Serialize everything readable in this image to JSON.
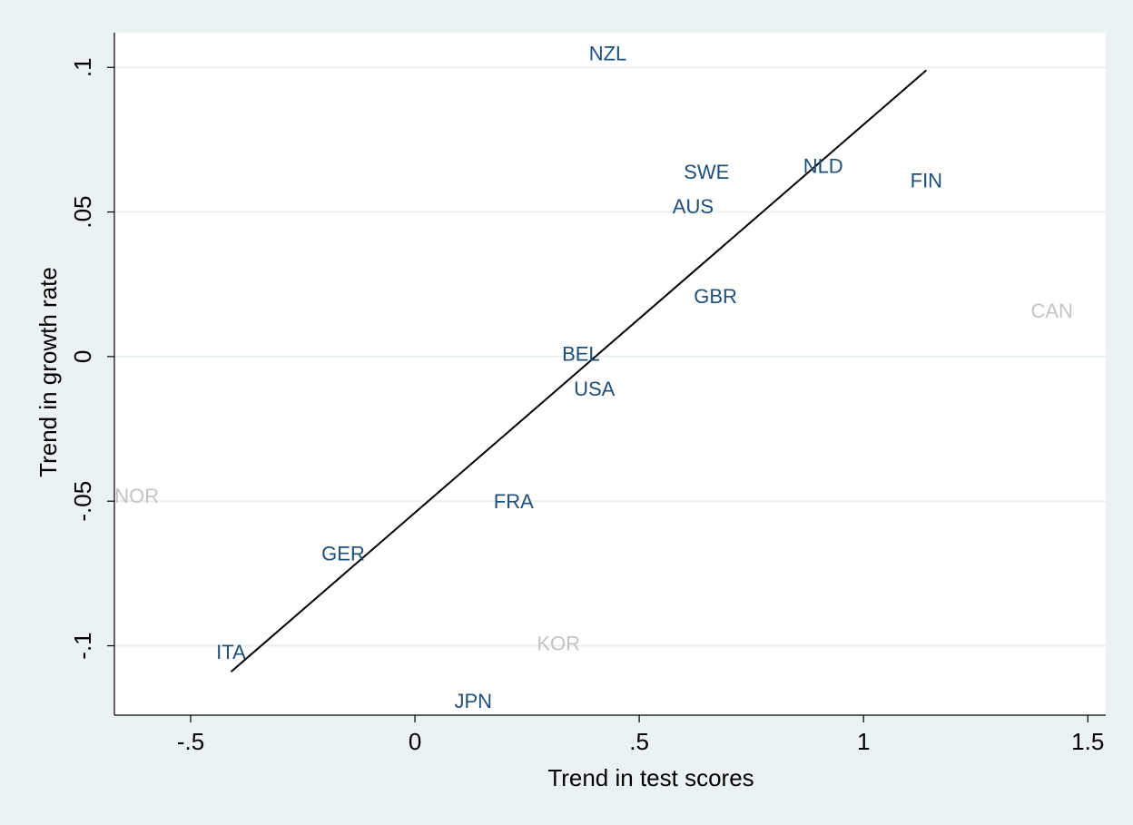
{
  "chart_data": {
    "type": "scatter",
    "xlabel": "Trend in test scores",
    "ylabel": "Trend in growth rate",
    "xlim": [
      -0.67,
      1.54
    ],
    "ylim": [
      -0.124,
      0.112
    ],
    "xticks": [
      -0.5,
      0,
      0.5,
      1,
      1.5
    ],
    "xtick_labels": [
      "-.5",
      "0",
      ".5",
      "1",
      "1.5"
    ],
    "yticks": [
      -0.1,
      -0.05,
      0,
      0.05,
      0.1
    ],
    "ytick_labels": [
      "-.1",
      "-.05",
      "0",
      ".05",
      ".1"
    ],
    "grid": "horizontal",
    "colors": {
      "background": "#eaf2f3",
      "plot": "#ffffff",
      "grid": "#e8f0f2",
      "label_main": "#1f4e79",
      "label_excluded": "#c4c4c4",
      "fit_line": "#000000"
    },
    "points": [
      {
        "label": "NZL",
        "x": 0.43,
        "y": 0.105,
        "group": "main"
      },
      {
        "label": "SWE",
        "x": 0.65,
        "y": 0.064,
        "group": "main"
      },
      {
        "label": "NLD",
        "x": 0.91,
        "y": 0.066,
        "group": "main"
      },
      {
        "label": "FIN",
        "x": 1.14,
        "y": 0.061,
        "group": "main"
      },
      {
        "label": "AUS",
        "x": 0.62,
        "y": 0.052,
        "group": "main"
      },
      {
        "label": "GBR",
        "x": 0.67,
        "y": 0.021,
        "group": "main"
      },
      {
        "label": "CAN",
        "x": 1.42,
        "y": 0.016,
        "group": "excluded"
      },
      {
        "label": "BEL",
        "x": 0.37,
        "y": 0.001,
        "group": "main"
      },
      {
        "label": "USA",
        "x": 0.4,
        "y": -0.011,
        "group": "main"
      },
      {
        "label": "NOR",
        "x": -0.62,
        "y": -0.048,
        "group": "excluded"
      },
      {
        "label": "FRA",
        "x": 0.22,
        "y": -0.05,
        "group": "main"
      },
      {
        "label": "GER",
        "x": -0.16,
        "y": -0.068,
        "group": "main"
      },
      {
        "label": "ITA",
        "x": -0.41,
        "y": -0.102,
        "group": "main"
      },
      {
        "label": "KOR",
        "x": 0.32,
        "y": -0.099,
        "group": "excluded"
      },
      {
        "label": "JPN",
        "x": 0.13,
        "y": -0.119,
        "group": "main"
      }
    ],
    "fit_line": {
      "x": [
        -0.41,
        1.14
      ],
      "y": [
        -0.109,
        0.099
      ]
    }
  }
}
